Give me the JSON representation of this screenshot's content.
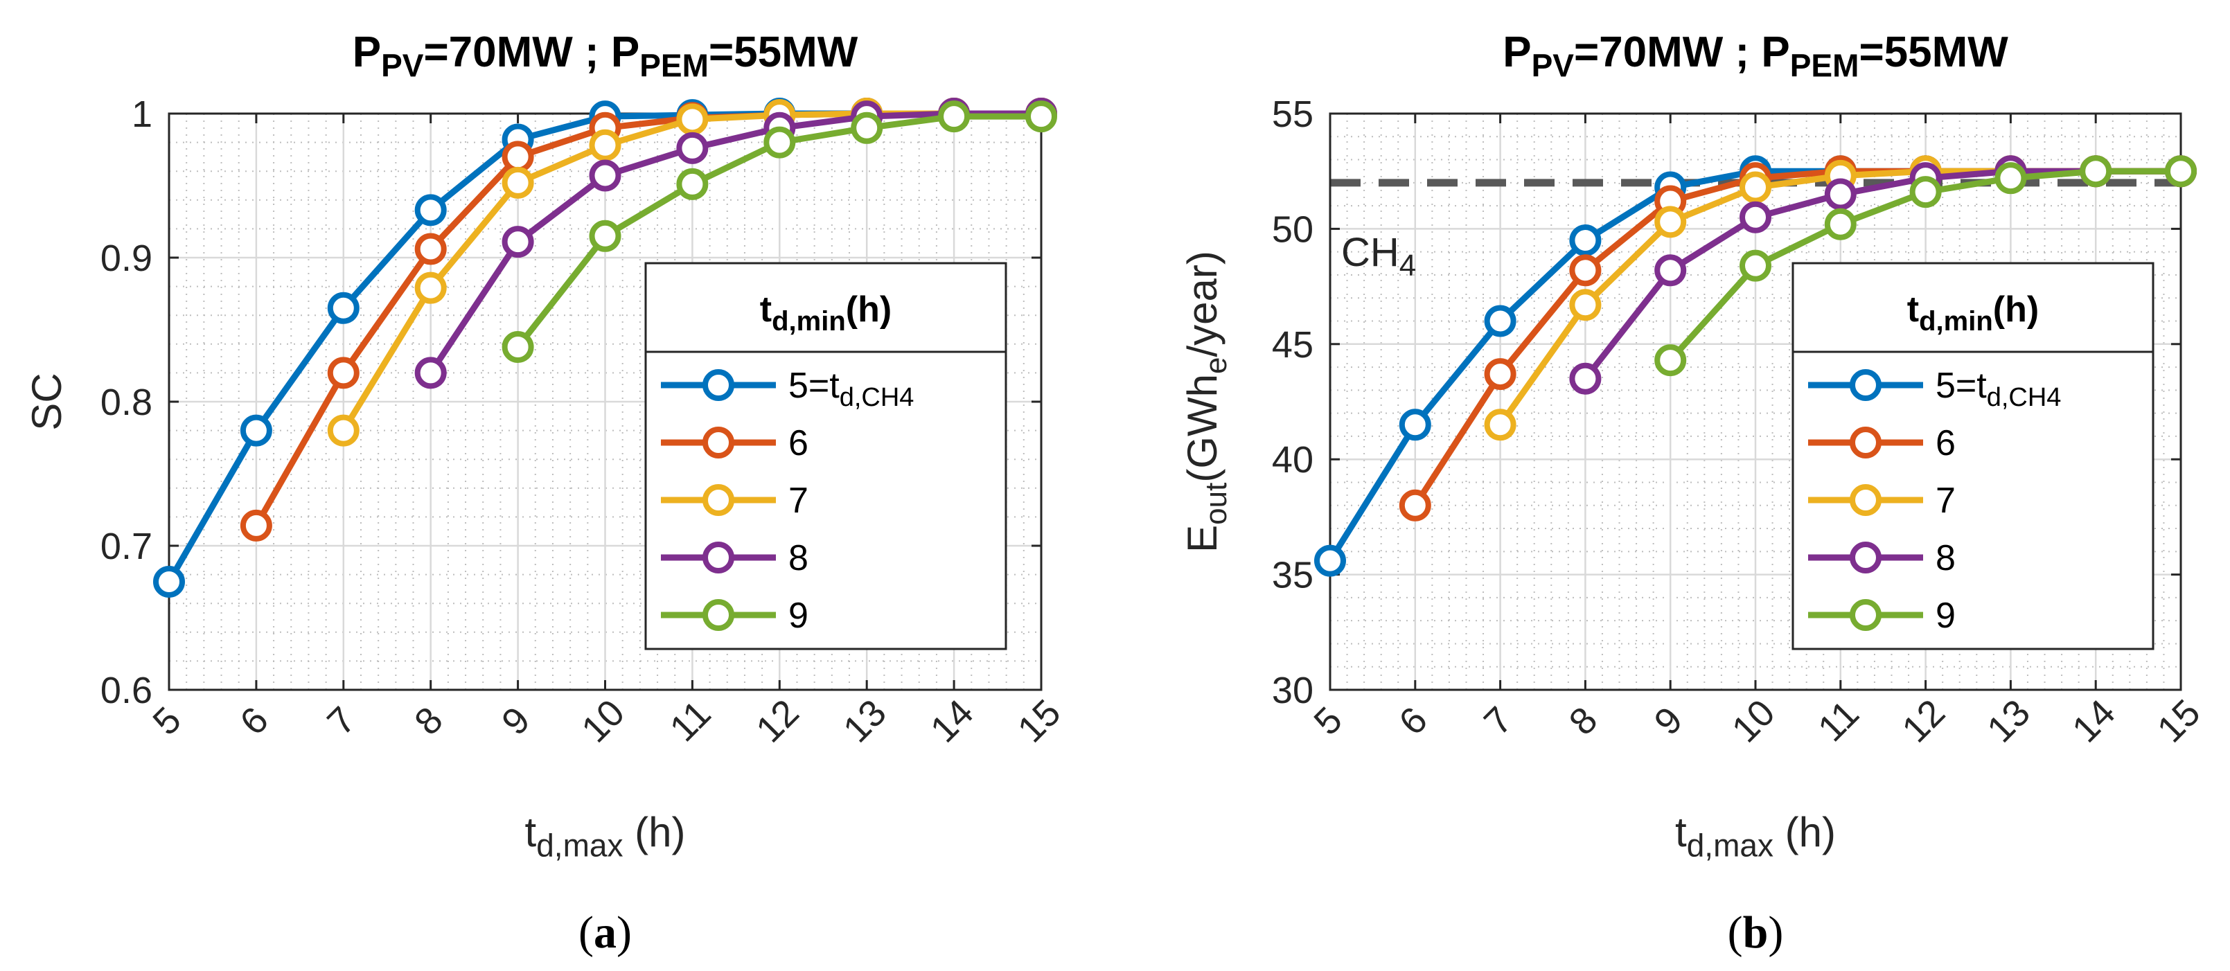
{
  "chart_data": [
    {
      "id": "a",
      "type": "line",
      "title": "P_PV=70MW ; P_PEM=55MW",
      "title_parts": [
        "P",
        "PV",
        "=70MW ; P",
        "PEM",
        "=55MW"
      ],
      "subfigure_label": "(a)",
      "subfigure_parts": [
        "(",
        "a",
        ")"
      ],
      "xlabel_parts": [
        "t",
        "d,max",
        " (h)"
      ],
      "ylabel": "SC",
      "xlim": [
        5,
        15
      ],
      "ylim": [
        0.6,
        1.0
      ],
      "xticks": [
        "5",
        "6",
        "7",
        "8",
        "9",
        "10",
        "11",
        "12",
        "13",
        "14",
        "15"
      ],
      "yticks": [
        "0.6",
        "0.7",
        "0.8",
        "0.9",
        "1"
      ],
      "grid": true,
      "legend_position": "lower-right",
      "legend_title_parts": [
        "t",
        "d,min",
        "(h)"
      ],
      "series": [
        {
          "name": "5=t_d,CH4",
          "label_parts": [
            "5=t",
            "d,CH4"
          ],
          "color": "#0072BD",
          "x": [
            5,
            6,
            7,
            8,
            9,
            10,
            11,
            12,
            13,
            14,
            15
          ],
          "y": [
            0.675,
            0.78,
            0.865,
            0.933,
            0.982,
            0.998,
            0.999,
            1.0,
            1.0,
            1.0,
            1.0
          ]
        },
        {
          "name": "6",
          "label_parts": [
            "6"
          ],
          "color": "#D95319",
          "x": [
            6,
            7,
            8,
            9,
            10,
            11,
            12,
            13,
            14,
            15
          ],
          "y": [
            0.714,
            0.82,
            0.906,
            0.97,
            0.99,
            0.997,
            0.999,
            1.0,
            1.0,
            1.0
          ]
        },
        {
          "name": "7",
          "label_parts": [
            "7"
          ],
          "color": "#EDB120",
          "x": [
            7,
            8,
            9,
            10,
            11,
            12,
            13,
            14,
            15
          ],
          "y": [
            0.78,
            0.879,
            0.952,
            0.978,
            0.996,
            0.999,
            1.0,
            1.0,
            1.0
          ]
        },
        {
          "name": "8",
          "label_parts": [
            "8"
          ],
          "color": "#7E2F8E",
          "x": [
            8,
            9,
            10,
            11,
            12,
            13,
            14,
            15
          ],
          "y": [
            0.82,
            0.911,
            0.957,
            0.976,
            0.99,
            0.998,
            1.0,
            1.0
          ]
        },
        {
          "name": "9",
          "label_parts": [
            "9"
          ],
          "color": "#77AC30",
          "x": [
            9,
            10,
            11,
            12,
            13,
            14,
            15
          ],
          "y": [
            0.838,
            0.915,
            0.951,
            0.98,
            0.99,
            0.998,
            0.998
          ]
        }
      ]
    },
    {
      "id": "b",
      "type": "line",
      "title": "P_PV=70MW ; P_PEM=55MW",
      "title_parts": [
        "P",
        "PV",
        "=70MW ; P",
        "PEM",
        "=55MW"
      ],
      "subfigure_label": "(b)",
      "subfigure_parts": [
        "(",
        "b",
        ")"
      ],
      "xlabel_parts": [
        "t",
        "d,max",
        " (h)"
      ],
      "ylabel": "E_out(GWh_e/year)",
      "ylabel_parts": [
        "E",
        "out",
        "(GWh",
        "e",
        "/year)"
      ],
      "xlim": [
        5,
        15
      ],
      "ylim": [
        30,
        55
      ],
      "xticks": [
        "5",
        "6",
        "7",
        "8",
        "9",
        "10",
        "11",
        "12",
        "13",
        "14",
        "15"
      ],
      "yticks": [
        "30",
        "35",
        "40",
        "45",
        "50",
        "55"
      ],
      "grid": true,
      "legend_position": "lower-right",
      "legend_title_parts": [
        "t",
        "d,min",
        "(h)"
      ],
      "reference_line": {
        "y": 52.0,
        "label_parts": [
          "CH",
          "4"
        ],
        "color": "#595959"
      },
      "series": [
        {
          "name": "5=t_d,CH4",
          "label_parts": [
            "5=t",
            "d,CH4"
          ],
          "color": "#0072BD",
          "x": [
            5,
            6,
            7,
            8,
            9,
            10,
            11,
            12,
            13,
            14,
            15
          ],
          "y": [
            35.6,
            41.5,
            46.0,
            49.5,
            51.8,
            52.5,
            52.5,
            52.5,
            52.5,
            52.5,
            52.5
          ]
        },
        {
          "name": "6",
          "label_parts": [
            "6"
          ],
          "color": "#D95319",
          "x": [
            6,
            7,
            8,
            9,
            10,
            11,
            12,
            13,
            14,
            15
          ],
          "y": [
            38.0,
            43.7,
            48.2,
            51.2,
            52.2,
            52.5,
            52.5,
            52.5,
            52.5,
            52.5
          ]
        },
        {
          "name": "7",
          "label_parts": [
            "7"
          ],
          "color": "#EDB120",
          "x": [
            7,
            8,
            9,
            10,
            11,
            12,
            13,
            14,
            15
          ],
          "y": [
            41.5,
            46.7,
            50.3,
            51.8,
            52.3,
            52.5,
            52.5,
            52.5,
            52.5
          ]
        },
        {
          "name": "8",
          "label_parts": [
            "8"
          ],
          "color": "#7E2F8E",
          "x": [
            8,
            9,
            10,
            11,
            12,
            13,
            14,
            15
          ],
          "y": [
            43.5,
            48.2,
            50.5,
            51.5,
            52.2,
            52.5,
            52.5,
            52.5
          ]
        },
        {
          "name": "9",
          "label_parts": [
            "9"
          ],
          "color": "#77AC30",
          "x": [
            9,
            10,
            11,
            12,
            13,
            14,
            15
          ],
          "y": [
            44.3,
            48.4,
            50.2,
            51.6,
            52.2,
            52.5,
            52.5
          ]
        }
      ]
    }
  ]
}
